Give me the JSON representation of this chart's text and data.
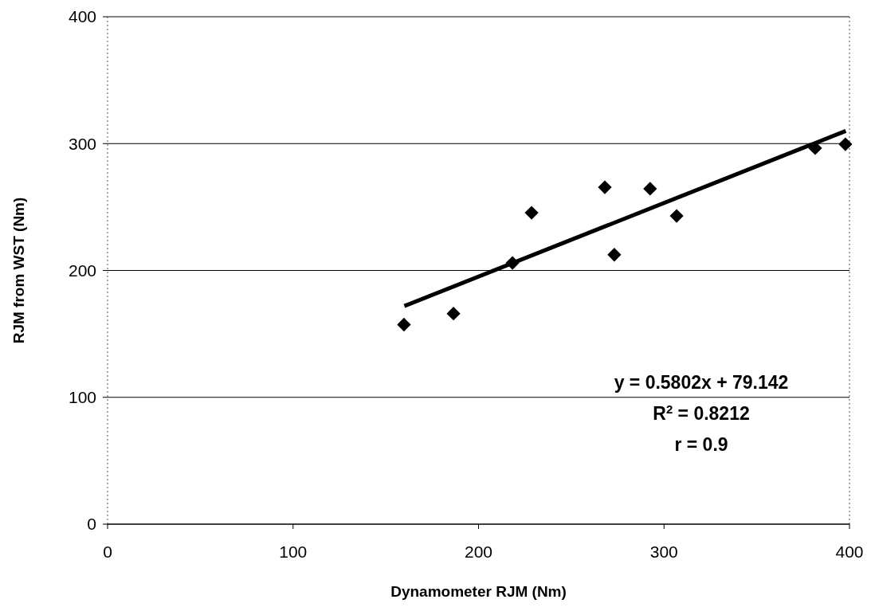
{
  "chart_data": {
    "type": "scatter",
    "xlabel": "Dynamometer RJM (Nm)",
    "ylabel": "RJM from WST (Nm)",
    "xlim": [
      0,
      400
    ],
    "xticks": [
      0,
      100,
      200,
      300,
      400
    ],
    "ylim": [
      0,
      400
    ],
    "yticks": [
      0,
      100,
      200,
      300,
      400
    ],
    "grid": "y",
    "series": [
      {
        "marker": "diamond",
        "color": "#000000",
        "x": [
          159.8,
          186.5,
          218.3,
          228.6,
          268.1,
          273.2,
          292.5,
          306.8,
          381.5,
          397.8
        ],
        "values": [
          157.3,
          166,
          205.9,
          245.5,
          265.6,
          212.4,
          264.4,
          243,
          296.4,
          299.5
        ]
      },
      {
        "type": "line",
        "color": "#000000",
        "x": [
          160,
          398
        ],
        "values": [
          172,
          310
        ]
      }
    ],
    "annotations": [
      "y = 0.5802x + 79.142",
      "R$^{2}$ = 0.8212",
      "r = 0.9"
    ]
  }
}
